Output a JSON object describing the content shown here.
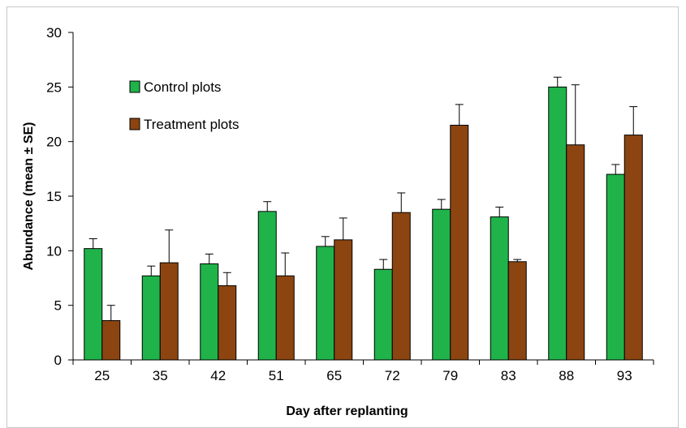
{
  "chart_data": {
    "type": "bar",
    "xlabel": "Day after replanting",
    "ylabel": "Abundance (mean ± SE)",
    "ylim": [
      0,
      30
    ],
    "yticks": [
      0,
      5,
      10,
      15,
      20,
      25,
      30
    ],
    "categories": [
      "25",
      "35",
      "42",
      "51",
      "65",
      "72",
      "79",
      "83",
      "88",
      "93"
    ],
    "series": [
      {
        "name": "Control plots",
        "color": "#1fb34a",
        "values": [
          10.2,
          7.7,
          8.8,
          13.6,
          10.4,
          8.3,
          13.8,
          13.1,
          25.0,
          17.0
        ],
        "errors": [
          0.9,
          0.9,
          0.9,
          0.9,
          0.9,
          0.9,
          0.9,
          0.9,
          0.9,
          0.9
        ]
      },
      {
        "name": "Treatment plots",
        "color": "#8c4510",
        "values": [
          3.6,
          8.9,
          6.8,
          7.7,
          11.0,
          13.5,
          21.5,
          9.0,
          19.7,
          20.6
        ],
        "errors": [
          1.4,
          3.0,
          1.2,
          2.1,
          2.0,
          1.8,
          1.9,
          0.2,
          5.5,
          2.6
        ]
      }
    ],
    "legend": {
      "position": "top-left"
    },
    "grid": false
  }
}
